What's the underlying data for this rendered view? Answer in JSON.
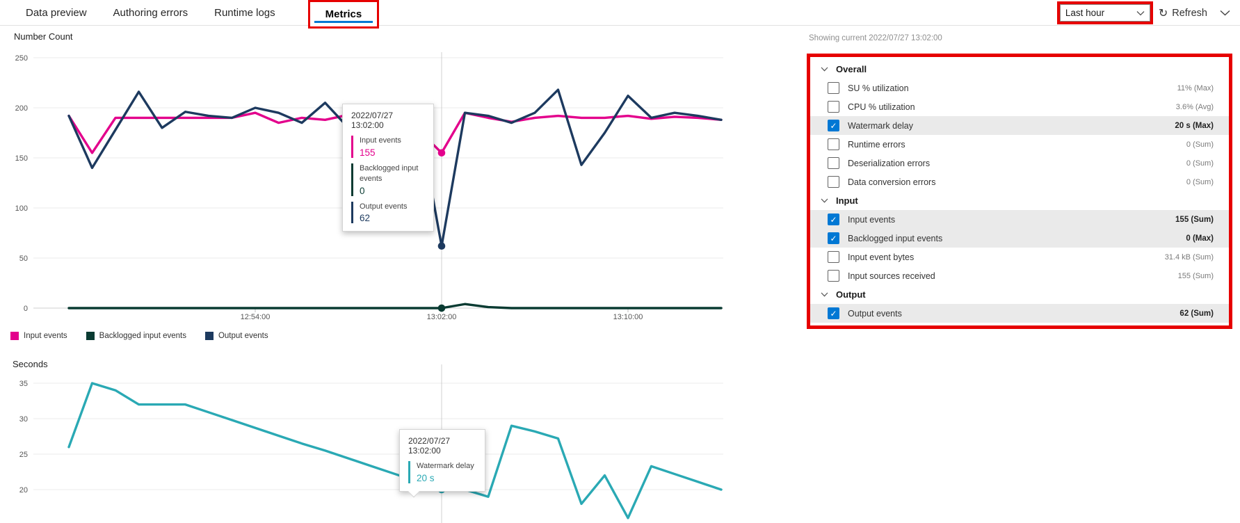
{
  "tabs": {
    "items": [
      "Data preview",
      "Authoring errors",
      "Runtime logs",
      "Metrics"
    ],
    "selected": "Metrics"
  },
  "header_right": {
    "time_range": "Last hour",
    "refresh_label": "Refresh"
  },
  "metrics_panel": {
    "showing_current": "Showing current 2022/07/27 13:02:00",
    "sections": [
      {
        "label": "Overall",
        "rows": [
          {
            "label": "SU % utilization",
            "value": "11% (Max)",
            "checked": false,
            "highlighted": false
          },
          {
            "label": "CPU % utilization",
            "value": "3.6% (Avg)",
            "checked": false,
            "highlighted": false
          },
          {
            "label": "Watermark delay",
            "value": "20 s (Max)",
            "checked": true,
            "highlighted": true
          },
          {
            "label": "Runtime errors",
            "value": "0 (Sum)",
            "checked": false,
            "highlighted": false
          },
          {
            "label": "Deserialization errors",
            "value": "0 (Sum)",
            "checked": false,
            "highlighted": false
          },
          {
            "label": "Data conversion errors",
            "value": "0 (Sum)",
            "checked": false,
            "highlighted": false
          }
        ]
      },
      {
        "label": "Input",
        "rows": [
          {
            "label": "Input events",
            "value": "155 (Sum)",
            "checked": true,
            "highlighted": true
          },
          {
            "label": "Backlogged input events",
            "value": "0 (Max)",
            "checked": true,
            "highlighted": true
          },
          {
            "label": "Input event bytes",
            "value": "31.4 kB (Sum)",
            "checked": false,
            "highlighted": false
          },
          {
            "label": "Input sources received",
            "value": "155 (Sum)",
            "checked": false,
            "highlighted": false
          }
        ]
      },
      {
        "label": "Output",
        "rows": [
          {
            "label": "Output events",
            "value": "62 (Sum)",
            "checked": true,
            "highlighted": true
          }
        ]
      }
    ]
  },
  "colors": {
    "accent_blue": "#0078d4",
    "annotation_red": "#e60000",
    "input_events": "#e3008c",
    "backlogged_input_events": "#0a3b32",
    "output_events": "#1d3a5f",
    "watermark_delay": "#2aa9b4",
    "row_highlight": "#eaeaea"
  },
  "chart_data": [
    {
      "type": "line",
      "title": "Number Count",
      "grid": true,
      "legend_position": "bottom",
      "ylim": [
        0,
        250
      ],
      "yticks": [
        0,
        50,
        100,
        150,
        200,
        250
      ],
      "x": [
        "12:46:00",
        "12:47:00",
        "12:48:00",
        "12:49:00",
        "12:50:00",
        "12:51:00",
        "12:52:00",
        "12:53:00",
        "12:54:00",
        "12:55:00",
        "12:56:00",
        "12:57:00",
        "12:58:00",
        "12:59:00",
        "13:00:00",
        "13:01:00",
        "13:02:00",
        "13:03:00",
        "13:04:00",
        "13:05:00",
        "13:06:00",
        "13:07:00",
        "13:08:00",
        "13:09:00",
        "13:10:00",
        "13:11:00",
        "13:12:00",
        "13:13:00",
        "13:14:00"
      ],
      "x_tick_indices": [
        8,
        16,
        24
      ],
      "series": [
        {
          "name": "Input events",
          "color": "#e3008c",
          "values": [
            192,
            155,
            190,
            190,
            190,
            190,
            190,
            190,
            195,
            185,
            190,
            188,
            193,
            188,
            190,
            178,
            155,
            195,
            190,
            186,
            190,
            192,
            190,
            190,
            192,
            189,
            191,
            190,
            188
          ]
        },
        {
          "name": "Backlogged input events",
          "color": "#0a3b32",
          "values": [
            0,
            0,
            0,
            0,
            0,
            0,
            0,
            0,
            0,
            0,
            0,
            0,
            0,
            0,
            0,
            0,
            0,
            4,
            1,
            0,
            0,
            0,
            0,
            0,
            0,
            0,
            0,
            0,
            0
          ]
        },
        {
          "name": "Output events",
          "color": "#1d3a5f",
          "values": [
            192,
            140,
            178,
            216,
            180,
            196,
            192,
            190,
            200,
            195,
            185,
            205,
            180,
            188,
            195,
            190,
            62,
            195,
            192,
            185,
            195,
            218,
            143,
            175,
            212,
            190,
            195,
            192,
            188
          ]
        }
      ],
      "tooltip": {
        "timestamp": "2022/07/27 13:02:00",
        "highlight_index": 16,
        "entries": [
          {
            "label": "Input events",
            "value": "155",
            "color": "#e3008c"
          },
          {
            "label": "Backlogged input events",
            "value": "0",
            "color": "#0a3b32"
          },
          {
            "label": "Output events",
            "value": "62",
            "color": "#1d3a5f"
          }
        ]
      }
    },
    {
      "type": "line",
      "title": "Seconds",
      "grid": true,
      "legend_position": "none",
      "ylim": [
        15,
        37
      ],
      "yticks": [
        20,
        25,
        30,
        35
      ],
      "x": [
        "12:46:00",
        "12:47:00",
        "12:48:00",
        "12:49:00",
        "12:50:00",
        "12:51:00",
        "12:52:00",
        "12:53:00",
        "12:54:00",
        "12:55:00",
        "12:56:00",
        "12:57:00",
        "12:58:00",
        "12:59:00",
        "13:00:00",
        "13:01:00",
        "13:02:00",
        "13:03:00",
        "13:04:00",
        "13:05:00",
        "13:06:00",
        "13:07:00",
        "13:08:00",
        "13:09:00",
        "13:10:00",
        "13:11:00",
        "13:12:00",
        "13:13:00",
        "13:14:00"
      ],
      "x_tick_indices": [],
      "series": [
        {
          "name": "Watermark delay",
          "color": "#2aa9b4",
          "values": [
            26,
            35,
            34,
            32,
            32,
            32,
            30.9,
            29.8,
            28.7,
            27.6,
            26.5,
            25.5,
            24.4,
            23.3,
            22.2,
            21.1,
            20,
            20,
            19,
            29,
            28.2,
            27.2,
            18,
            22,
            16,
            23.3,
            22.2,
            21.1,
            20
          ]
        }
      ],
      "tooltip": {
        "timestamp": "2022/07/27 13:02:00",
        "highlight_index": 16,
        "entries": [
          {
            "label": "Watermark delay",
            "value": "20 s",
            "color": "#2aa9b4"
          }
        ]
      }
    }
  ]
}
